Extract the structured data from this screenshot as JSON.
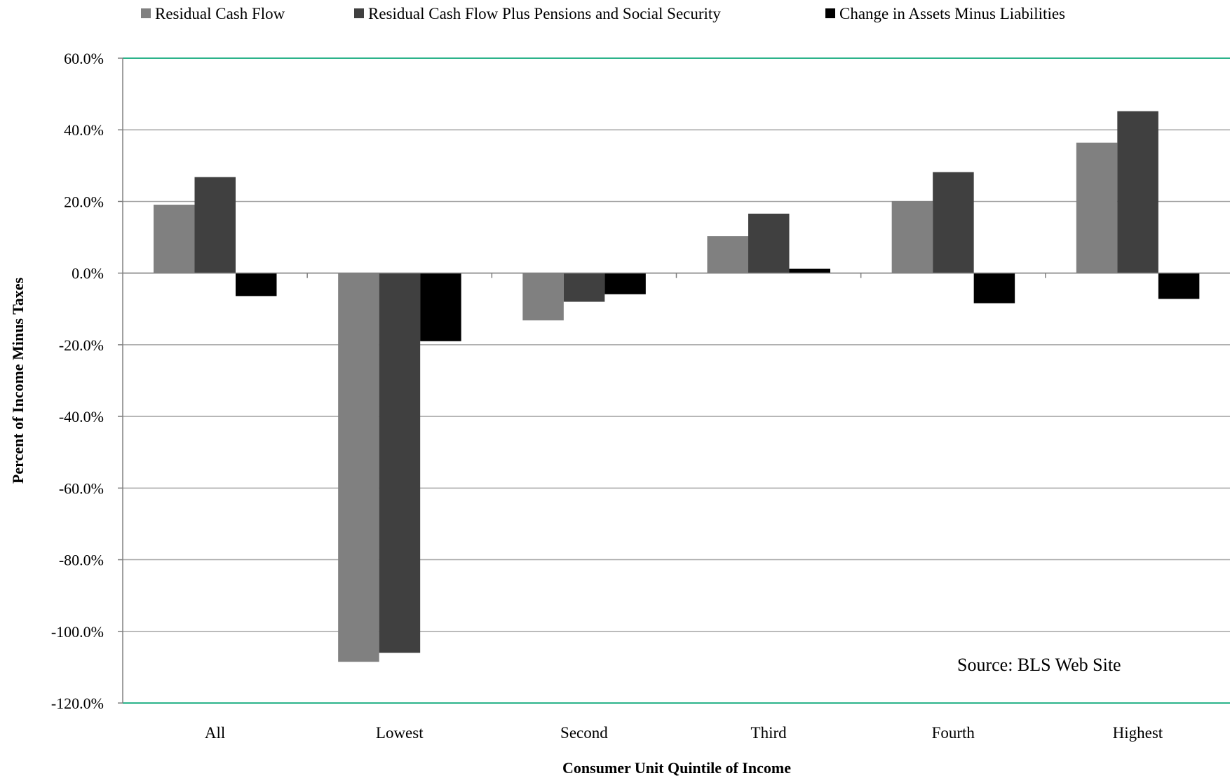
{
  "chart_data": {
    "type": "bar",
    "xlabel": "Consumer Unit Quintile of  Income",
    "ylabel": "Percent of Income Minus Taxes",
    "categories": [
      "All",
      "Lowest",
      "Second",
      "Third",
      "Fourth",
      "Highest"
    ],
    "series": [
      {
        "name": "Residual Cash Flow",
        "color": "#808080",
        "values": [
          19.1,
          -108.5,
          -13.2,
          10.3,
          20.1,
          36.4
        ]
      },
      {
        "name": "Residual Cash Flow Plus Pensions and Social Security",
        "color": "#404040",
        "values": [
          26.8,
          -106.0,
          -8.0,
          16.6,
          28.2,
          45.2
        ]
      },
      {
        "name": "Change in Assets Minus Liabilities",
        "color": "#000000",
        "values": [
          -6.4,
          -19.0,
          -5.9,
          1.2,
          -8.4,
          -7.2
        ]
      }
    ],
    "ylim": [
      -120,
      60
    ],
    "yticks": [
      60,
      40,
      20,
      0,
      -20,
      -40,
      -60,
      -80,
      -100,
      -120
    ],
    "ytick_format": "percent_1dp",
    "grid": true,
    "legend_position": "top",
    "annotation": "Source: BLS Web Site",
    "colors": {
      "gridline": "#a6a6a6",
      "frame_line": "#2bb38a",
      "axis": "#808080"
    }
  }
}
